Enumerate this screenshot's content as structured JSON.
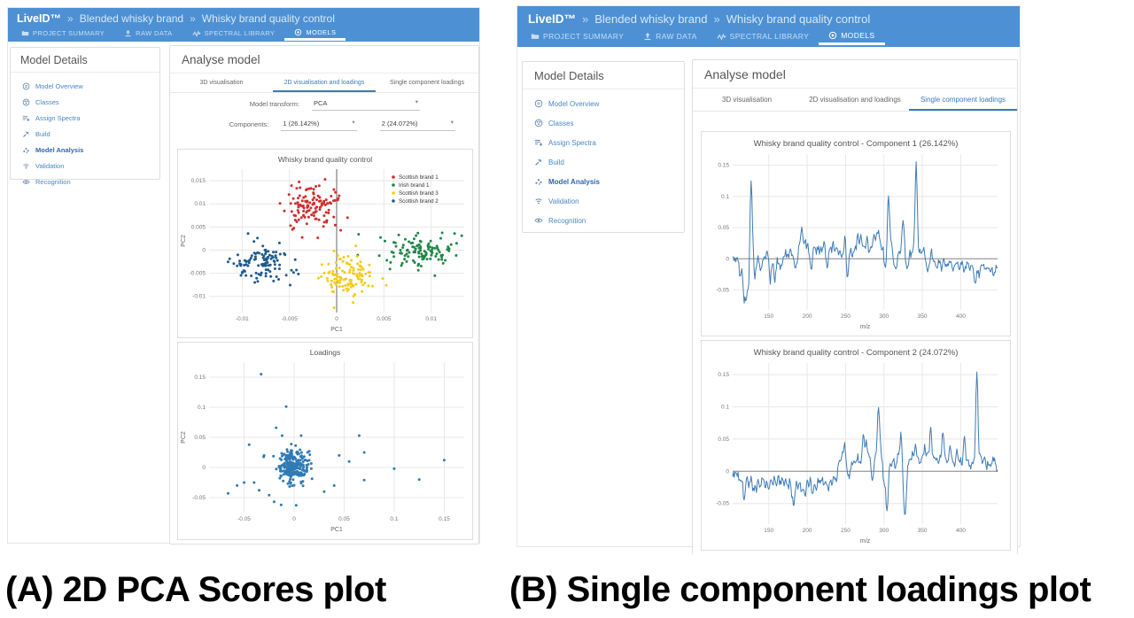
{
  "header": {
    "brand": "LiveID™",
    "separator": "»",
    "breadcrumbs": [
      "Blended whisky brand",
      "Whisky brand quality control"
    ],
    "nav": [
      {
        "label": "PROJECT SUMMARY",
        "icon": "folder-icon",
        "active": false
      },
      {
        "label": "RAW DATA",
        "icon": "upload-icon",
        "active": false
      },
      {
        "label": "SPECTRAL LIBRARY",
        "icon": "waveform-icon",
        "active": false
      },
      {
        "label": "MODELS",
        "icon": "target-icon",
        "active": true
      }
    ]
  },
  "sidebar": {
    "title": "Model Details",
    "items": [
      {
        "label": "Model Overview",
        "icon": "overview-icon",
        "active": false
      },
      {
        "label": "Classes",
        "icon": "classes-icon",
        "active": false
      },
      {
        "label": "Assign Spectra",
        "icon": "assign-spectra-icon",
        "active": false
      },
      {
        "label": "Build",
        "icon": "build-icon",
        "active": false
      },
      {
        "label": "Model Analysis",
        "icon": "analysis-icon",
        "active": true
      },
      {
        "label": "Validation",
        "icon": "validation-icon",
        "active": false
      },
      {
        "label": "Recognition",
        "icon": "recognition-icon",
        "active": false
      }
    ]
  },
  "tabs": [
    "3D visualisation",
    "2D visualisation and loadings",
    "Single component loadings"
  ],
  "panelA": {
    "main_title": "Analyse model",
    "active_tab": 1,
    "form": {
      "model_transform_label": "Model transform:",
      "model_transform_value": "PCA",
      "components_label": "Components:",
      "component1_value": "1 (26.142%)",
      "component2_value": "2 (24.072%)"
    }
  },
  "panelB": {
    "main_title": "Analyse model",
    "active_tab": 2
  },
  "captions": {
    "a": "(A) 2D PCA Scores plot",
    "b": "(B) Single component loadings plot"
  },
  "colors": {
    "header_blue": "#4d91d4",
    "tab_active_blue": "#3d7ab8",
    "link_blue": "#4a87c5",
    "active_link_blue": "#2f66ad",
    "spectrum_line": "#3d7ab5",
    "loadings_point": "#2f7bb5",
    "cluster_red": "#d22c2c",
    "cluster_green": "#1f8648",
    "cluster_yellow": "#f2cd1c",
    "cluster_navy": "#1f5a8c"
  },
  "chart_data": [
    {
      "id": "pca-scores",
      "type": "scatter",
      "title": "Whisky brand quality control",
      "xlabel": "PC1",
      "ylabel": "PC2",
      "xlim": [
        -0.0135,
        0.0135
      ],
      "ylim": [
        -0.0135,
        0.0175
      ],
      "xticks": [
        -0.01,
        -0.005,
        0,
        0.005,
        0.01
      ],
      "yticks": [
        -0.01,
        -0.005,
        0,
        0.005,
        0.01,
        0.015
      ],
      "zero_line": "vertical",
      "grid": true,
      "legend": true,
      "legend_position": "top-right",
      "series": [
        {
          "name": "Scottish brand 1",
          "color": "#d22c2c",
          "n": 120,
          "center": [
            -0.0025,
            0.0095
          ],
          "std": [
            0.0016,
            0.0026
          ],
          "seed": 11
        },
        {
          "name": "Irish brand 1",
          "color": "#1f8648",
          "n": 115,
          "center": [
            0.0085,
            0.0
          ],
          "std": [
            0.002,
            0.0022
          ],
          "seed": 22
        },
        {
          "name": "Scottish brand 3",
          "color": "#f2cd1c",
          "n": 115,
          "center": [
            0.0008,
            -0.0055
          ],
          "std": [
            0.0015,
            0.0022
          ],
          "seed": 33
        },
        {
          "name": "Scottish brand 2",
          "color": "#1f5a8c",
          "n": 110,
          "center": [
            -0.008,
            -0.0028
          ],
          "std": [
            0.0014,
            0.0023
          ],
          "seed": 44
        }
      ]
    },
    {
      "id": "pca-loadings",
      "type": "scatter",
      "title": "Loadings",
      "xlabel": "PC1",
      "ylabel": "PC2",
      "xlim": [
        -0.085,
        0.17
      ],
      "ylim": [
        -0.075,
        0.175
      ],
      "xticks": [
        -0.05,
        0,
        0.05,
        0.1,
        0.15
      ],
      "yticks": [
        -0.05,
        0,
        0.05,
        0.1,
        0.15
      ],
      "grid": true,
      "legend": false,
      "series": [
        {
          "name": "loadings",
          "color": "#2f7bb5",
          "n": 250,
          "center": [
            -0.001,
            0.002
          ],
          "std": [
            0.0075,
            0.013
          ],
          "seed": 7,
          "extra_points": [
            [
              -0.033,
              0.155
            ],
            [
              -0.008,
              0.101
            ],
            [
              -0.018,
              0.066
            ],
            [
              -0.012,
              0.053
            ],
            [
              0.007,
              0.053
            ],
            [
              0.065,
              0.053
            ],
            [
              0.07,
              0.025
            ],
            [
              0.15,
              0.012
            ],
            [
              0.1,
              -0.002
            ],
            [
              0.125,
              -0.02
            ],
            [
              0.07,
              -0.021
            ],
            [
              0.04,
              -0.03
            ],
            [
              -0.04,
              -0.025
            ],
            [
              -0.05,
              -0.025
            ],
            [
              -0.057,
              -0.03
            ],
            [
              -0.066,
              -0.043
            ],
            [
              -0.025,
              -0.046
            ],
            [
              -0.02,
              -0.057
            ],
            [
              -0.013,
              -0.062
            ],
            [
              0.002,
              -0.063
            ],
            [
              -0.035,
              -0.038
            ],
            [
              0.03,
              -0.04
            ],
            [
              0.055,
              0.01
            ],
            [
              0.045,
              0.02
            ],
            [
              -0.045,
              0.038
            ],
            [
              -0.03,
              0.02
            ]
          ]
        }
      ]
    },
    {
      "id": "component-1",
      "type": "line",
      "title": "Whisky brand quality control - Component 1 (26.142%)",
      "xlabel": "m/z",
      "ylabel": "",
      "color": "#3d7ab5",
      "xlim": [
        103,
        448
      ],
      "ylim": [
        -0.082,
        0.168
      ],
      "xticks": [
        150,
        200,
        250,
        300,
        350,
        400
      ],
      "yticks": [
        -0.05,
        0,
        0.05,
        0.1,
        0.15
      ],
      "zero_line": "horizontal",
      "grid": true,
      "noise": 0.006,
      "seed": 5,
      "baseline": [
        [
          103,
          0.0
        ],
        [
          350,
          -0.001
        ],
        [
          448,
          -0.008
        ]
      ],
      "peaks": [
        [
          113,
          -0.031,
          1.4
        ],
        [
          118,
          -0.066,
          1.4
        ],
        [
          121,
          -0.058,
          1.2
        ],
        [
          124,
          -0.05,
          1.2
        ],
        [
          127,
          0.13,
          1.5
        ],
        [
          132,
          -0.028,
          1.4
        ],
        [
          140,
          -0.02,
          1.4
        ],
        [
          148,
          0.012,
          1.4
        ],
        [
          152,
          -0.035,
          1.3
        ],
        [
          158,
          -0.034,
          1.4
        ],
        [
          165,
          -0.015,
          1.4
        ],
        [
          172,
          0.01,
          1.4
        ],
        [
          178,
          0.012,
          1.4
        ],
        [
          185,
          -0.012,
          1.4
        ],
        [
          190,
          0.022,
          1.4
        ],
        [
          193,
          0.045,
          1.5
        ],
        [
          197,
          0.03,
          1.4
        ],
        [
          201,
          0.022,
          1.4
        ],
        [
          205,
          -0.018,
          1.4
        ],
        [
          209,
          0.025,
          1.4
        ],
        [
          214,
          0.02,
          1.4
        ],
        [
          218,
          0.015,
          1.4
        ],
        [
          222,
          0.03,
          1.4
        ],
        [
          226,
          -0.012,
          1.4
        ],
        [
          230,
          0.018,
          1.4
        ],
        [
          234,
          0.026,
          1.4
        ],
        [
          238,
          0.02,
          1.4
        ],
        [
          243,
          0.01,
          1.4
        ],
        [
          247,
          0.012,
          1.4
        ],
        [
          250,
          0.04,
          1.3
        ],
        [
          252,
          -0.044,
          1.2
        ],
        [
          257,
          0.012,
          1.4
        ],
        [
          262,
          0.018,
          1.4
        ],
        [
          266,
          0.04,
          1.4
        ],
        [
          270,
          0.035,
          1.4
        ],
        [
          274,
          0.02,
          1.4
        ],
        [
          278,
          0.038,
          1.4
        ],
        [
          283,
          0.02,
          1.4
        ],
        [
          287,
          0.042,
          1.4
        ],
        [
          291,
          0.04,
          1.4
        ],
        [
          294,
          0.037,
          1.4
        ],
        [
          298,
          0.02,
          1.4
        ],
        [
          302,
          -0.015,
          1.4
        ],
        [
          306,
          0.103,
          1.5
        ],
        [
          310,
          0.02,
          1.4
        ],
        [
          315,
          -0.02,
          1.4
        ],
        [
          320,
          0.015,
          1.4
        ],
        [
          325,
          0.066,
          1.5
        ],
        [
          330,
          -0.018,
          1.4
        ],
        [
          334,
          0.01,
          1.4
        ],
        [
          338,
          0.012,
          1.4
        ],
        [
          342,
          0.152,
          1.5
        ],
        [
          347,
          0.012,
          1.4
        ],
        [
          352,
          0.018,
          1.4
        ],
        [
          357,
          -0.02,
          1.4
        ],
        [
          362,
          0.012,
          1.4
        ],
        [
          368,
          -0.015,
          1.5
        ],
        [
          375,
          -0.012,
          1.5
        ],
        [
          382,
          -0.01,
          1.5
        ],
        [
          390,
          -0.012,
          1.5
        ],
        [
          398,
          -0.01,
          1.5
        ],
        [
          405,
          -0.015,
          1.5
        ],
        [
          412,
          -0.012,
          1.5
        ],
        [
          419,
          -0.037,
          1.4
        ],
        [
          424,
          -0.02,
          1.4
        ],
        [
          432,
          -0.01,
          1.6
        ],
        [
          438,
          -0.015,
          1.6
        ],
        [
          443,
          -0.018,
          1.6
        ]
      ]
    },
    {
      "id": "component-2",
      "type": "line",
      "title": "Whisky brand quality control - Component 2 (24.072%)",
      "xlabel": "m/z",
      "ylabel": "",
      "color": "#3d7ab5",
      "xlim": [
        103,
        448
      ],
      "ylim": [
        -0.082,
        0.168
      ],
      "xticks": [
        150,
        200,
        250,
        300,
        350,
        400
      ],
      "yticks": [
        -0.05,
        0,
        0.05,
        0.1,
        0.15
      ],
      "zero_line": "horizontal",
      "grid": true,
      "noise": 0.006,
      "seed": 9,
      "baseline": [
        [
          103,
          -0.005
        ],
        [
          235,
          -0.006
        ],
        [
          245,
          0.002
        ],
        [
          448,
          0.002
        ]
      ],
      "peaks": [
        [
          113,
          -0.012,
          1.4
        ],
        [
          118,
          -0.042,
          1.4
        ],
        [
          124,
          -0.02,
          1.4
        ],
        [
          130,
          -0.025,
          1.4
        ],
        [
          134,
          -0.022,
          1.4
        ],
        [
          139,
          -0.018,
          1.4
        ],
        [
          145,
          -0.02,
          1.4
        ],
        [
          150,
          -0.026,
          1.4
        ],
        [
          155,
          -0.015,
          1.4
        ],
        [
          160,
          -0.018,
          1.4
        ],
        [
          165,
          -0.012,
          1.4
        ],
        [
          170,
          -0.02,
          1.4
        ],
        [
          175,
          -0.022,
          1.4
        ],
        [
          180,
          -0.03,
          1.4
        ],
        [
          183,
          -0.046,
          1.3
        ],
        [
          188,
          -0.02,
          1.4
        ],
        [
          193,
          -0.028,
          1.4
        ],
        [
          197,
          -0.035,
          1.4
        ],
        [
          202,
          -0.015,
          1.4
        ],
        [
          207,
          -0.028,
          1.4
        ],
        [
          212,
          -0.02,
          1.4
        ],
        [
          217,
          -0.015,
          1.4
        ],
        [
          222,
          -0.02,
          1.4
        ],
        [
          227,
          -0.025,
          1.4
        ],
        [
          232,
          -0.015,
          1.4
        ],
        [
          237,
          -0.01,
          1.4
        ],
        [
          242,
          0.012,
          1.4
        ],
        [
          246,
          0.02,
          1.4
        ],
        [
          249,
          0.037,
          1.4
        ],
        [
          254,
          -0.012,
          1.4
        ],
        [
          258,
          0.01,
          1.4
        ],
        [
          262,
          0.015,
          1.4
        ],
        [
          266,
          0.02,
          1.4
        ],
        [
          270,
          0.01,
          1.4
        ],
        [
          273,
          0.053,
          1.4
        ],
        [
          277,
          0.046,
          1.4
        ],
        [
          281,
          0.02,
          1.4
        ],
        [
          285,
          -0.012,
          1.4
        ],
        [
          289,
          0.02,
          1.4
        ],
        [
          293,
          0.101,
          1.5
        ],
        [
          297,
          0.02,
          1.4
        ],
        [
          300,
          -0.02,
          1.3
        ],
        [
          304,
          -0.066,
          1.4
        ],
        [
          309,
          0.01,
          1.4
        ],
        [
          313,
          0.012,
          1.4
        ],
        [
          318,
          0.02,
          1.4
        ],
        [
          322,
          0.054,
          1.4
        ],
        [
          326,
          -0.03,
          1.2
        ],
        [
          328,
          -0.062,
          1.3
        ],
        [
          333,
          0.015,
          1.4
        ],
        [
          337,
          0.025,
          1.4
        ],
        [
          341,
          0.037,
          1.4
        ],
        [
          345,
          0.015,
          1.4
        ],
        [
          349,
          0.02,
          1.4
        ],
        [
          353,
          0.037,
          1.4
        ],
        [
          357,
          0.02,
          1.4
        ],
        [
          361,
          0.066,
          1.4
        ],
        [
          365,
          0.02,
          1.4
        ],
        [
          369,
          0.015,
          1.4
        ],
        [
          373,
          0.02,
          1.4
        ],
        [
          377,
          0.061,
          1.4
        ],
        [
          381,
          0.02,
          1.4
        ],
        [
          386,
          0.037,
          1.4
        ],
        [
          390,
          0.015,
          1.4
        ],
        [
          395,
          0.029,
          1.4
        ],
        [
          400,
          0.015,
          1.4
        ],
        [
          405,
          0.053,
          1.4
        ],
        [
          410,
          0.015,
          1.4
        ],
        [
          415,
          0.012,
          1.4
        ],
        [
          421,
          0.155,
          1.5
        ],
        [
          426,
          0.02,
          1.4
        ],
        [
          431,
          0.022,
          1.4
        ],
        [
          436,
          0.01,
          1.4
        ],
        [
          441,
          0.012,
          1.4
        ],
        [
          444,
          0.015,
          1.4
        ]
      ]
    }
  ]
}
